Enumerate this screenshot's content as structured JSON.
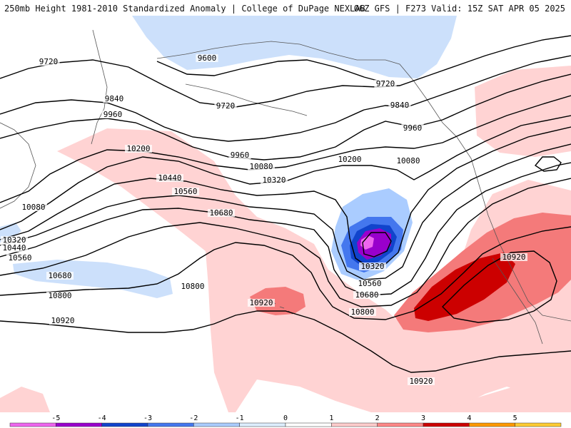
{
  "header": {
    "left_title": "250mb Height 1981-2010 Standardized Anomaly | College of DuPage NEXLAB",
    "right_title": "06Z GFS | F273 Valid: 15Z SAT APR 05 2025"
  },
  "colors": {
    "anomaly": {
      "-5": "#ee66ee",
      "-4": "#9900cc",
      "-3": "#1144cc",
      "-2": "#4477ee",
      "-1": "#aaccff",
      "0": "#ffffff",
      "1": "#ffcccc",
      "2": "#ff8888",
      "3": "#ee3333",
      "4": "#cc0000",
      "5": "#ff9900"
    }
  },
  "colorbar": {
    "ticks": [
      "-5",
      "-4",
      "-3",
      "-2",
      "-1",
      "0",
      "1",
      "2",
      "3",
      "4",
      "5"
    ],
    "segments": [
      {
        "value": -5.5,
        "color": "#ee66ee"
      },
      {
        "value": -4.5,
        "color": "#9900cc"
      },
      {
        "value": -3.5,
        "color": "#1144cc"
      },
      {
        "value": -2.5,
        "color": "#4477ee"
      },
      {
        "value": -1.5,
        "color": "#aaccff"
      },
      {
        "value": -0.5,
        "color": "#ddeeff"
      },
      {
        "value": 0.5,
        "color": "#ffffff"
      },
      {
        "value": 1.5,
        "color": "#ffcccc"
      },
      {
        "value": 2.5,
        "color": "#ff8888"
      },
      {
        "value": 3.5,
        "color": "#cc0000"
      },
      {
        "value": 4.5,
        "color": "#ff9900"
      },
      {
        "value": 5.5,
        "color": "#ffcc33"
      }
    ]
  },
  "contour_labels": [
    "9600",
    "9720",
    "9720",
    "9720",
    "9840",
    "9840",
    "9960",
    "9960",
    "9960",
    "10080",
    "10080",
    "10080",
    "10200",
    "10200",
    "10320",
    "10320",
    "10320",
    "10440",
    "10440",
    "10560",
    "10560",
    "10560",
    "10680",
    "10680",
    "10680",
    "10800",
    "10800",
    "10800",
    "10920",
    "10920",
    "10920",
    "10920"
  ]
}
